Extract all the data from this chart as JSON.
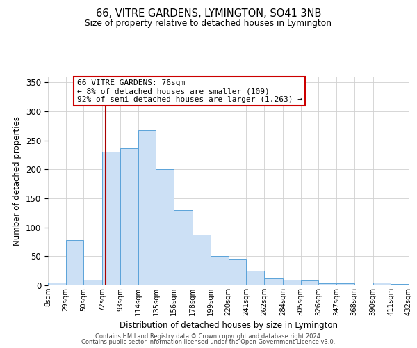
{
  "title": "66, VITRE GARDENS, LYMINGTON, SO41 3NB",
  "subtitle": "Size of property relative to detached houses in Lymington",
  "xlabel": "Distribution of detached houses by size in Lymington",
  "ylabel": "Number of detached properties",
  "bar_color": "#cce0f5",
  "bar_edge_color": "#5ba3d9",
  "background_color": "#ffffff",
  "grid_color": "#d0d0d0",
  "annotation_box_color": "#cc0000",
  "vline_color": "#aa0000",
  "vline_x": 76,
  "annotation_title": "66 VITRE GARDENS: 76sqm",
  "annotation_line2": "← 8% of detached houses are smaller (109)",
  "annotation_line3": "92% of semi-detached houses are larger (1,263) →",
  "bin_edges": [
    8,
    29,
    50,
    72,
    93,
    114,
    135,
    156,
    178,
    199,
    220,
    241,
    262,
    284,
    305,
    326,
    347,
    368,
    390,
    411,
    432
  ],
  "bar_heights": [
    5,
    78,
    10,
    230,
    237,
    268,
    201,
    130,
    88,
    50,
    46,
    25,
    12,
    10,
    8,
    4,
    4,
    0,
    5,
    2
  ],
  "ylim": [
    0,
    360
  ],
  "yticks": [
    0,
    50,
    100,
    150,
    200,
    250,
    300,
    350
  ],
  "footer_line1": "Contains HM Land Registry data © Crown copyright and database right 2024.",
  "footer_line2": "Contains public sector information licensed under the Open Government Licence v3.0."
}
